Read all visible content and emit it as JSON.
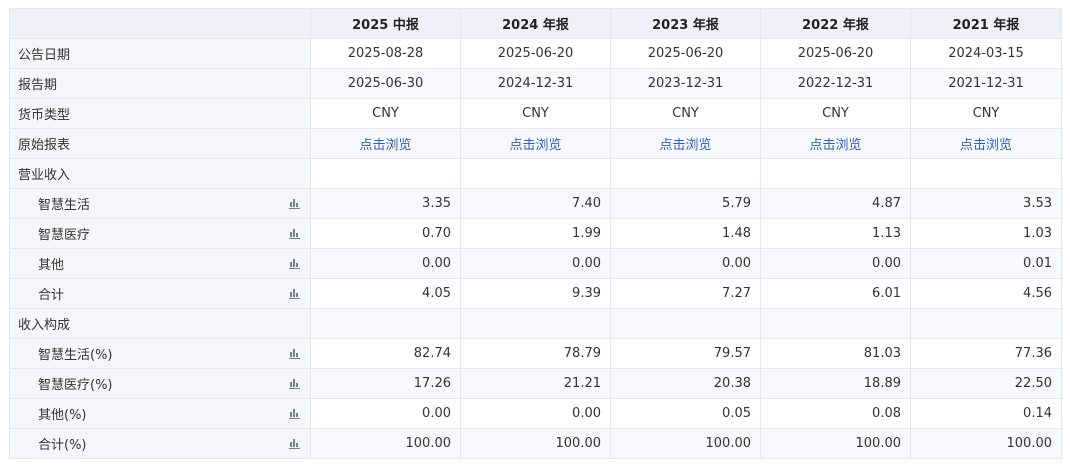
{
  "columns": [
    "2025 中报",
    "2024 年报",
    "2023 年报",
    "2022 年报",
    "2021 年报"
  ],
  "meta_rows": [
    {
      "label": "公告日期",
      "values": [
        "2025-08-28",
        "2025-06-20",
        "2025-06-20",
        "2025-06-20",
        "2024-03-15"
      ]
    },
    {
      "label": "报告期",
      "values": [
        "2025-06-30",
        "2024-12-31",
        "2023-12-31",
        "2022-12-31",
        "2021-12-31"
      ]
    },
    {
      "label": "货币类型",
      "values": [
        "CNY",
        "CNY",
        "CNY",
        "CNY",
        "CNY"
      ]
    },
    {
      "label": "原始报表",
      "link": true,
      "values": [
        "点击浏览",
        "点击浏览",
        "点击浏览",
        "点击浏览",
        "点击浏览"
      ]
    }
  ],
  "sections": [
    {
      "title": "营业收入",
      "rows": [
        {
          "label": "智慧生活",
          "values": [
            "3.35",
            "7.40",
            "5.79",
            "4.87",
            "3.53"
          ]
        },
        {
          "label": "智慧医疗",
          "values": [
            "0.70",
            "1.99",
            "1.48",
            "1.13",
            "1.03"
          ]
        },
        {
          "label": "其他",
          "values": [
            "0.00",
            "0.00",
            "0.00",
            "0.00",
            "0.01"
          ]
        },
        {
          "label": "合计",
          "values": [
            "4.05",
            "9.39",
            "7.27",
            "6.01",
            "4.56"
          ]
        }
      ]
    },
    {
      "title": "收入构成",
      "rows": [
        {
          "label": "智慧生活(%)",
          "values": [
            "82.74",
            "78.79",
            "79.57",
            "81.03",
            "77.36"
          ]
        },
        {
          "label": "智慧医疗(%)",
          "values": [
            "17.26",
            "21.21",
            "20.38",
            "18.89",
            "22.50"
          ]
        },
        {
          "label": "其他(%)",
          "values": [
            "0.00",
            "0.00",
            "0.05",
            "0.08",
            "0.14"
          ]
        },
        {
          "label": "合计(%)",
          "values": [
            "100.00",
            "100.00",
            "100.00",
            "100.00",
            "100.00"
          ]
        }
      ]
    }
  ],
  "colors": {
    "link": "#2b5fc6",
    "header_bg": "#f0f1f8",
    "label_bg": "#f5f6fa",
    "icon": "#7a7f99"
  }
}
